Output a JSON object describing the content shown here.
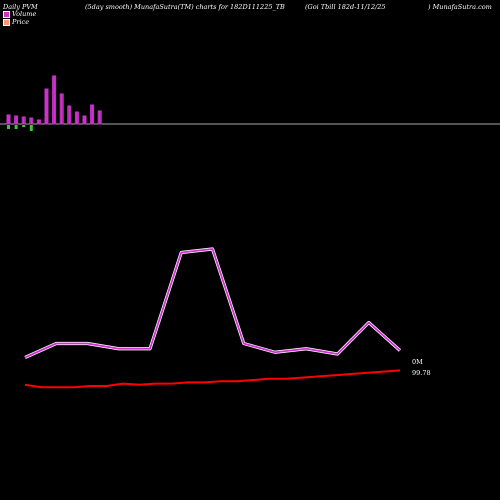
{
  "header": {
    "left": "Daily PVM",
    "center": "(5day smooth) MunafaSutra(TM) charts for 182D111225_TB",
    "right1": "(Goi  Tbill 182d-11/12/25",
    "right2": ") MunafaSutra.com"
  },
  "legend": {
    "volume_label": "Volume",
    "price_label": "Price",
    "volume_color": "#cc33cc",
    "price_color": "#ff9966"
  },
  "labels": {
    "volume_last": "0M",
    "price_last": "99.78"
  },
  "chart_data": {
    "type": "bar+line",
    "volume_bars": [
      {
        "up": 9,
        "down": 4
      },
      {
        "up": 8,
        "down": 4
      },
      {
        "up": 7,
        "down": 2
      },
      {
        "up": 6,
        "down": 6
      },
      {
        "up": 4,
        "down": 0
      },
      {
        "up": 35,
        "down": 0
      },
      {
        "up": 48,
        "down": 0
      },
      {
        "up": 30,
        "down": 0
      },
      {
        "up": 18,
        "down": 0
      },
      {
        "up": 12,
        "down": 0
      },
      {
        "up": 8,
        "down": 0
      },
      {
        "up": 19,
        "down": 0
      },
      {
        "up": 13,
        "down": 0
      }
    ],
    "smooth_volume": [
      10,
      18,
      18,
      15,
      15,
      70,
      72,
      18,
      13,
      15,
      12,
      30,
      14
    ],
    "price": [
      99.66,
      99.64,
      99.64,
      99.64,
      99.65,
      99.65,
      99.67,
      99.66,
      99.67,
      99.67,
      99.68,
      99.68,
      99.69,
      99.69,
      99.7,
      99.71,
      99.71,
      99.72,
      99.73,
      99.74,
      99.75,
      99.76,
      99.77,
      99.78
    ],
    "colors": {
      "volume_up": "#cc33cc",
      "volume_down": "#33cc33",
      "smooth_volume_line": "#cc33cc",
      "price_line": "#ff0000"
    }
  }
}
